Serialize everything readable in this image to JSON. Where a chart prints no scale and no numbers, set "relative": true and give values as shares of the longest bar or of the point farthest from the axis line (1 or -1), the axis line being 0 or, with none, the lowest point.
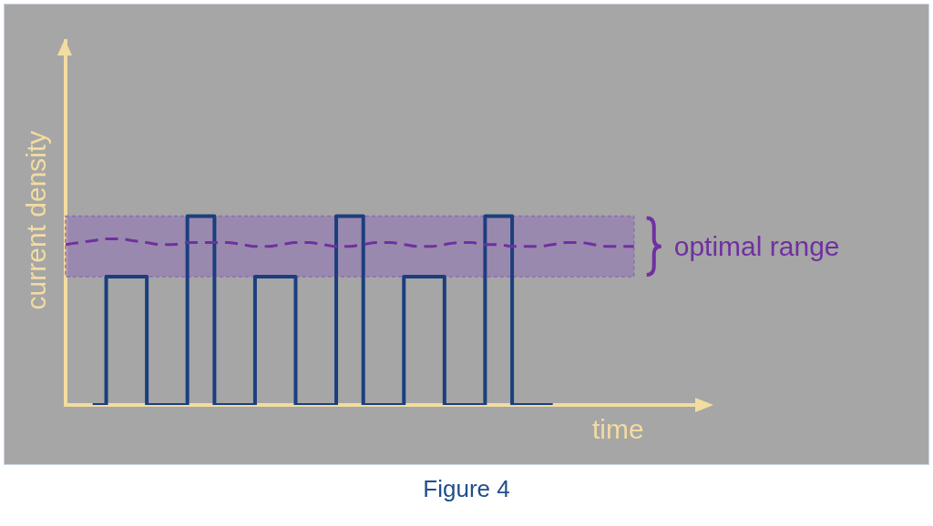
{
  "chart_data": {
    "type": "step",
    "relative": true,
    "xlabel": "time",
    "ylabel": "current density",
    "annotations": [
      "Figure 4"
    ],
    "categories": [
      null,
      null,
      null,
      null,
      null,
      null,
      null,
      null,
      null,
      null,
      null,
      null,
      null,
      null,
      null,
      null,
      null,
      null,
      null,
      null,
      null,
      null,
      null,
      null,
      null,
      null,
      null,
      null,
      null,
      null,
      null,
      null,
      null,
      null,
      null,
      null,
      null,
      null,
      null,
      null,
      null,
      null,
      null
    ],
    "series": [
      {
        "color": "#1b3f7e",
        "values": [
          null,
          null,
          0,
          0.68,
          0.68,
          0.68,
          0,
          0,
          0,
          1,
          1,
          0,
          0,
          0,
          0.68,
          0.68,
          0.68,
          0,
          0,
          0,
          1,
          1,
          0,
          0,
          0,
          0.68,
          0.68,
          0.68,
          0,
          0,
          0,
          1,
          1,
          0,
          0,
          0,
          0,
          null,
          null,
          null,
          null,
          null,
          null
        ]
      },
      {
        "type": "line",
        "color": "#7030a0",
        "line_style": "dashed",
        "values": [
          0.85,
          0.86,
          0.87,
          0.88,
          0.88,
          0.87,
          0.86,
          0.85,
          0.85,
          0.86,
          0.86,
          0.86,
          0.86,
          0.85,
          0.84,
          0.84,
          0.85,
          0.86,
          0.86,
          0.85,
          0.84,
          0.84,
          0.85,
          0.86,
          0.86,
          0.85,
          0.84,
          0.84,
          0.85,
          0.86,
          0.86,
          0.85,
          0.85,
          0.84,
          0.84,
          0.84,
          0.85,
          0.86,
          0.86,
          0.85,
          0.84,
          0.84,
          0.84
        ]
      }
    ],
    "bands": [
      {
        "axis": "y",
        "from": 0.68,
        "to": 1.0,
        "label": "optimal range",
        "color": "#8e6bb5"
      }
    ],
    "legend": false,
    "grid": false,
    "marker": "none"
  }
}
